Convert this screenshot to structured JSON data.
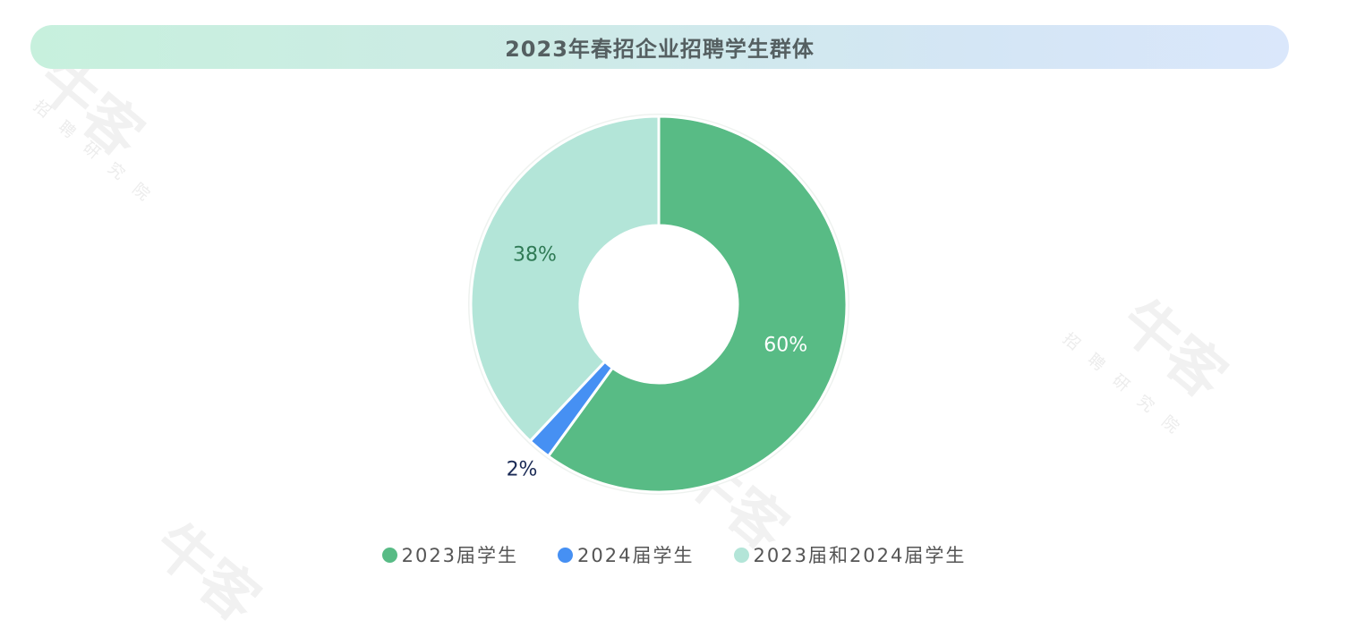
{
  "watermark": {
    "brand": "牛客",
    "sub": "招聘研究院"
  },
  "chart_data": {
    "type": "pie",
    "title": "2023年春招企业招聘学生群体",
    "series": [
      {
        "name": "2023届学生",
        "value": 60,
        "label": "60%",
        "color": "#58bb85",
        "label_color": "#ffffff"
      },
      {
        "name": "2024届学生",
        "value": 2,
        "label": "2%",
        "color": "#4690f3",
        "label_color": "#1a2a55"
      },
      {
        "name": "2023届和2024届学生",
        "value": 38,
        "label": "38%",
        "color": "#b3e5d8",
        "label_color": "#2f7a55"
      }
    ],
    "donut": true,
    "legend": "bottom-center"
  }
}
